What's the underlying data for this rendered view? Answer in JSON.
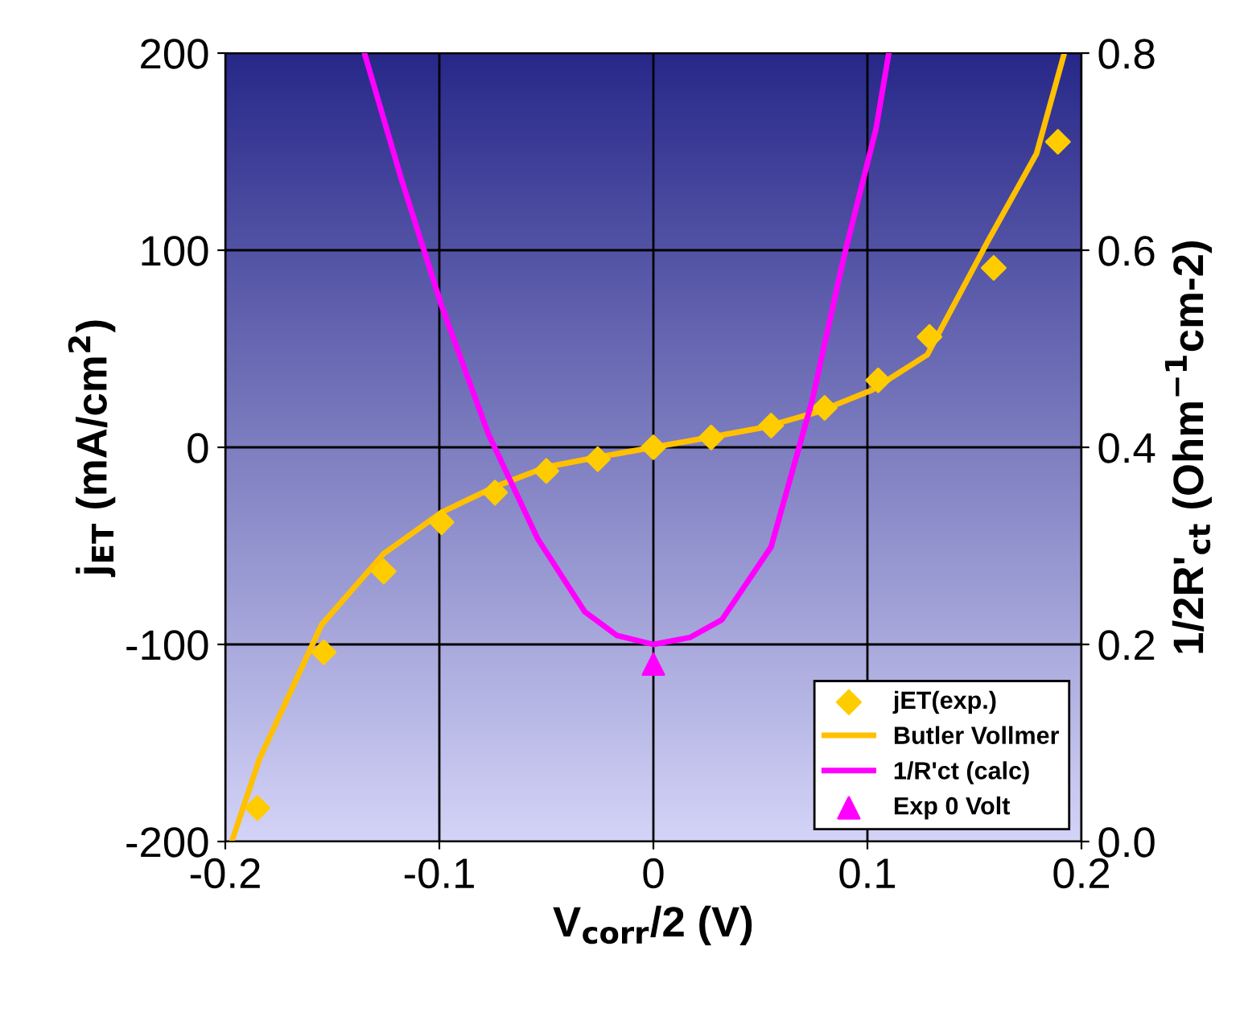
{
  "chart_data": {
    "type": "line",
    "xlabel": "V$_{corr}$/2 (V)",
    "ylabel": "j$_{ET}$ (mA/cm$^{2}$)",
    "y2label": "1/2R'$_{ct}$ (Ohm$^{−1}$cm-2)",
    "xlim": [
      -0.2,
      0.2
    ],
    "xticks": [
      -0.2,
      -0.1,
      0,
      0.1,
      0.2
    ],
    "ylim": [
      -200,
      200
    ],
    "yticks": [
      -200,
      -100,
      0,
      100,
      200
    ],
    "y2lim": [
      0,
      0.8
    ],
    "y2ticks": [
      {
        "value": 0,
        "label": "0.0"
      },
      {
        "value": 0.2,
        "label": "0.2"
      },
      {
        "value": 0.4,
        "label": "0.4"
      },
      {
        "value": 0.6,
        "label": "0.6"
      },
      {
        "value": 0.8,
        "label": "0.8"
      }
    ],
    "grid": true,
    "legend": "bottom right",
    "series": [
      {
        "name": "jET(exp.)",
        "type": "scatter",
        "marker": "diamond",
        "color": "#ffcc00",
        "x": [
          -0.185,
          -0.154,
          -0.126,
          -0.099,
          -0.074,
          -0.05,
          -0.026,
          0,
          0.027,
          0.055,
          0.08,
          0.105,
          0.129,
          0.159,
          0.189
        ],
        "values": [
          -183,
          -104,
          -63,
          -38,
          -23,
          -12,
          -6,
          0,
          5,
          11,
          20,
          34,
          56,
          91,
          155
        ]
      },
      {
        "name": "Butler Vollmer",
        "color": "#ffc000",
        "x": [
          -0.197,
          -0.184,
          -0.155,
          -0.126,
          -0.099,
          -0.074,
          -0.05,
          -0.026,
          0,
          0.026,
          0.051,
          0.077,
          0.102,
          0.128,
          0.156,
          0.179,
          0.192
        ],
        "values": [
          -200,
          -158,
          -90,
          -54,
          -33,
          -20,
          -10,
          -5,
          0,
          5,
          10,
          18,
          29,
          47,
          104,
          149,
          200
        ]
      },
      {
        "name": "1/R'ct (calc)",
        "axis": "y2",
        "color": "#ff00ff",
        "x": [
          -0.135,
          -0.118,
          -0.099,
          -0.077,
          -0.054,
          -0.032,
          -0.017,
          0,
          0.017,
          0.032,
          0.055,
          0.074,
          0.089,
          0.104,
          0.11
        ],
        "values": [
          0.8,
          0.674,
          0.544,
          0.413,
          0.307,
          0.233,
          0.209,
          0.2,
          0.207,
          0.225,
          0.299,
          0.446,
          0.593,
          0.723,
          0.8
        ]
      },
      {
        "name": "Exp 0 Volt",
        "type": "scatter",
        "axis": "y2",
        "marker": "triangle",
        "color": "#ff00ff",
        "x": [
          0
        ],
        "values": [
          0.18
        ]
      }
    ]
  }
}
